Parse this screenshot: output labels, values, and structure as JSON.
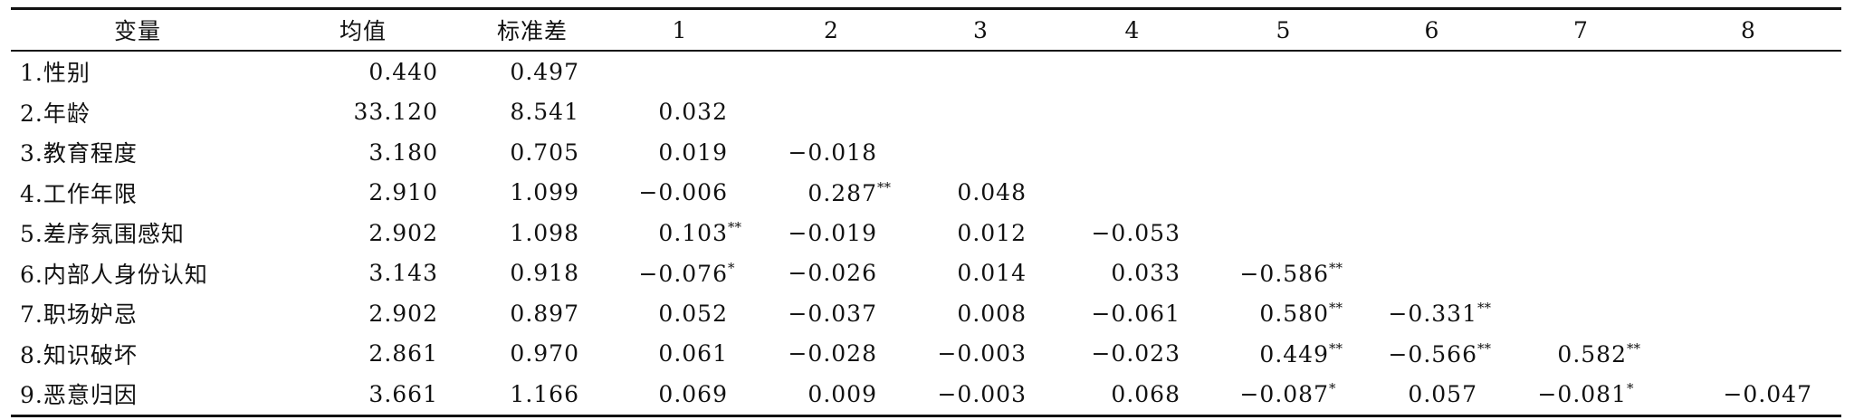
{
  "header": {
    "variable": "变量",
    "mean": "均值",
    "sd": "标准差",
    "cols": [
      "1",
      "2",
      "3",
      "4",
      "5",
      "6",
      "7",
      "8"
    ]
  },
  "rows": [
    {
      "name": "1.性别",
      "mean": "0.440",
      "sd": "0.497",
      "corr": []
    },
    {
      "name": "2.年龄",
      "mean": "33.120",
      "sd": "8.541",
      "corr": [
        {
          "v": "0.032",
          "s": ""
        }
      ]
    },
    {
      "name": "3.教育程度",
      "mean": "3.180",
      "sd": "0.705",
      "corr": [
        {
          "v": "0.019",
          "s": ""
        },
        {
          "v": "−0.018",
          "s": ""
        }
      ]
    },
    {
      "name": "4.工作年限",
      "mean": "2.910",
      "sd": "1.099",
      "corr": [
        {
          "v": "−0.006",
          "s": ""
        },
        {
          "v": "0.287",
          "s": "**"
        },
        {
          "v": "0.048",
          "s": ""
        }
      ]
    },
    {
      "name": "5.差序氛围感知",
      "mean": "2.902",
      "sd": "1.098",
      "corr": [
        {
          "v": "0.103",
          "s": "**"
        },
        {
          "v": "−0.019",
          "s": ""
        },
        {
          "v": "0.012",
          "s": ""
        },
        {
          "v": "−0.053",
          "s": ""
        }
      ]
    },
    {
      "name": "6.内部人身份认知",
      "mean": "3.143",
      "sd": "0.918",
      "corr": [
        {
          "v": "−0.076",
          "s": "*"
        },
        {
          "v": "−0.026",
          "s": ""
        },
        {
          "v": "0.014",
          "s": ""
        },
        {
          "v": "0.033",
          "s": ""
        },
        {
          "v": "−0.586",
          "s": "**"
        }
      ]
    },
    {
      "name": "7.职场妒忌",
      "mean": "2.902",
      "sd": "0.897",
      "corr": [
        {
          "v": "0.052",
          "s": ""
        },
        {
          "v": "−0.037",
          "s": ""
        },
        {
          "v": "0.008",
          "s": ""
        },
        {
          "v": "−0.061",
          "s": ""
        },
        {
          "v": "0.580",
          "s": "**"
        },
        {
          "v": "−0.331",
          "s": "**"
        }
      ]
    },
    {
      "name": "8.知识破坏",
      "mean": "2.861",
      "sd": "0.970",
      "corr": [
        {
          "v": "0.061",
          "s": ""
        },
        {
          "v": "−0.028",
          "s": ""
        },
        {
          "v": "−0.003",
          "s": ""
        },
        {
          "v": "−0.023",
          "s": ""
        },
        {
          "v": "0.449",
          "s": "**"
        },
        {
          "v": "−0.566",
          "s": "**"
        },
        {
          "v": "0.582",
          "s": "**"
        }
      ]
    },
    {
      "name": "9.恶意归因",
      "mean": "3.661",
      "sd": "1.166",
      "corr": [
        {
          "v": "0.069",
          "s": ""
        },
        {
          "v": "0.009",
          "s": ""
        },
        {
          "v": "−0.003",
          "s": ""
        },
        {
          "v": "0.068",
          "s": ""
        },
        {
          "v": "−0.087",
          "s": "*"
        },
        {
          "v": "0.057",
          "s": ""
        },
        {
          "v": "−0.081",
          "s": "*"
        },
        {
          "v": "−0.047",
          "s": ""
        }
      ]
    }
  ]
}
